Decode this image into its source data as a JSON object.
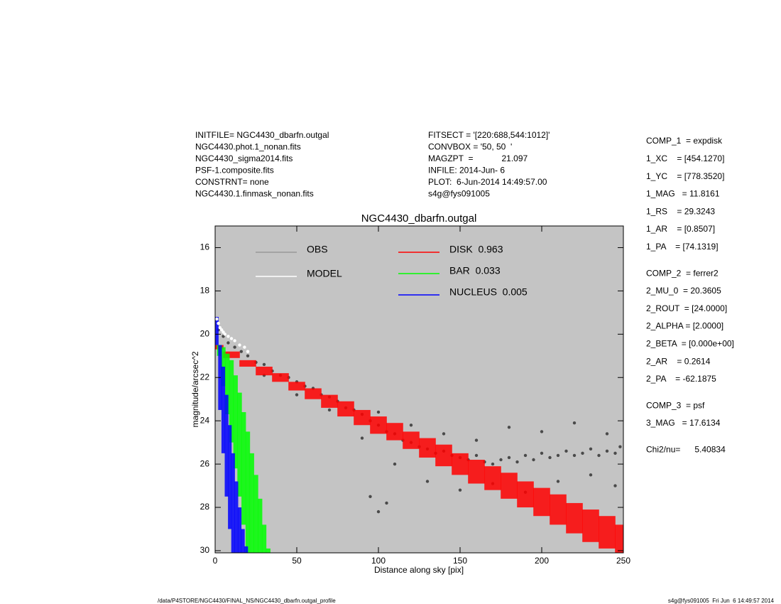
{
  "header": {
    "left": [
      "INITFILE= NGC4430_dbarfn.outgal",
      "NGC4430.phot.1_nonan.fits",
      "NGC4430_sigma2014.fits",
      "PSF-1.composite.fits",
      "CONSTRNT= none",
      "NGC4430.1.finmask_nonan.fits"
    ],
    "middle": [
      "FITSECT = '[220:688,544:1012]'",
      "CONVBOX = '50, 50  '",
      "MAGZPT  =            21.097",
      "INFILE: 2014-Jun- 6",
      "PLOT:  6-Jun-2014 14:49:57.00",
      "s4g@fys091005"
    ]
  },
  "parameters": [
    [
      "COMP_1  = expdisk",
      "1_XC    = [454.1270]",
      "1_YC    = [778.3520]",
      "1_MAG   = 11.8161",
      "1_RS    = 29.3243",
      "1_AR    = [0.8507]",
      "1_PA    = [74.1319]"
    ],
    [
      "COMP_2  = ferrer2",
      "2_MU_0  = 20.3605",
      "2_ROUT  = [24.0000]",
      "2_ALPHA = [2.0000]",
      "2_BETA  = [0.000e+00]",
      "2_AR    = 0.2614",
      "2_PA    = -62.1875"
    ],
    [
      "COMP_3  = psf",
      "3_MAG   = 17.6134"
    ],
    [
      "Chi2/nu=      5.40834"
    ]
  ],
  "footer": {
    "left": "/data/P4STORE/NGC4430/FINAL_NS/NGC4430_dbarfn.outgal_profile",
    "right": "s4g@fys091005  Fri Jun  6 14:49:57 2014"
  },
  "chart_data": {
    "type": "scatter",
    "title": "NGC4430_dbarfn.outgal",
    "x_label": "Distance along sky [pix]",
    "y_label": "magnitude/arcsec^2",
    "xlim": [
      0,
      250
    ],
    "ylim": [
      30.1,
      15
    ],
    "xticks": [
      0,
      50,
      100,
      150,
      200,
      250
    ],
    "yticks": [
      16,
      18,
      20,
      22,
      24,
      26,
      28,
      30
    ],
    "background": "#c4c4c4",
    "series": [
      {
        "name": "OBS",
        "kind": "points",
        "color": "#4a4a4a",
        "legend_color": "#999999",
        "x": [
          2,
          5,
          8,
          12,
          16,
          20,
          25,
          30,
          35,
          40,
          45,
          50,
          55,
          60,
          65,
          70,
          75,
          80,
          85,
          90,
          95,
          100,
          105,
          110,
          115,
          120,
          125,
          130,
          135,
          140,
          145,
          150,
          155,
          160,
          165,
          170,
          175,
          180,
          185,
          190,
          195,
          200,
          205,
          210,
          215,
          220,
          225,
          230,
          235,
          240,
          245,
          248,
          30,
          50,
          70,
          90,
          110,
          130,
          150,
          170,
          190,
          210,
          230,
          245,
          100,
          120,
          140,
          160,
          180,
          200,
          220,
          240,
          95,
          100,
          105
        ],
        "values": [
          19.8,
          20.1,
          20.4,
          20.6,
          20.8,
          21.0,
          21.3,
          21.4,
          21.7,
          21.9,
          22.0,
          22.2,
          22.4,
          22.5,
          22.8,
          22.9,
          23.1,
          23.4,
          23.5,
          23.7,
          24.0,
          24.2,
          24.5,
          24.6,
          24.9,
          25.0,
          25.2,
          25.3,
          25.5,
          25.4,
          25.6,
          25.7,
          25.8,
          25.6,
          25.9,
          26.0,
          25.8,
          25.7,
          25.9,
          25.6,
          25.8,
          25.5,
          25.7,
          25.6,
          25.4,
          25.6,
          25.5,
          25.3,
          25.6,
          25.4,
          25.5,
          25.2,
          21.9,
          22.8,
          23.5,
          24.8,
          26.0,
          26.8,
          27.2,
          26.9,
          27.3,
          26.8,
          26.5,
          27.0,
          23.6,
          24.2,
          24.6,
          24.9,
          24.3,
          24.5,
          24.1,
          24.6,
          27.5,
          28.2,
          27.8
        ]
      },
      {
        "name": "MODEL",
        "kind": "points",
        "color": "#ffffff",
        "x": [
          1,
          2,
          3,
          4,
          5,
          6,
          8,
          10,
          12,
          15,
          18,
          20
        ],
        "values": [
          19.3,
          19.5,
          19.7,
          19.8,
          19.9,
          20.0,
          20.1,
          20.2,
          20.3,
          20.5,
          20.6,
          20.8
        ]
      },
      {
        "name": "DISK  0.963",
        "kind": "band",
        "color": "#ff0000",
        "x": [
          0,
          10,
          20,
          30,
          40,
          50,
          60,
          70,
          80,
          90,
          100,
          110,
          120,
          130,
          140,
          150,
          160,
          170,
          180,
          190,
          200,
          210,
          220,
          230,
          240,
          250
        ],
        "lower": [
          20.5,
          20.8,
          21.2,
          21.5,
          21.8,
          22.2,
          22.5,
          22.8,
          23.1,
          23.5,
          23.8,
          24.1,
          24.5,
          24.8,
          25.1,
          25.5,
          25.8,
          26.1,
          26.4,
          26.8,
          27.1,
          27.4,
          27.8,
          28.1,
          28.4,
          28.8
        ],
        "upper": [
          20.7,
          21.1,
          21.5,
          21.9,
          22.2,
          22.6,
          23.0,
          23.4,
          23.8,
          24.2,
          24.6,
          24.9,
          25.3,
          25.7,
          26.1,
          26.5,
          26.9,
          27.2,
          27.6,
          28.0,
          28.4,
          28.8,
          29.2,
          29.6,
          29.9,
          30.1
        ]
      },
      {
        "name": "BAR  0.033",
        "kind": "band",
        "color": "#00ff00",
        "x": [
          2.5,
          5,
          7.5,
          10,
          12.5,
          15,
          17.5,
          20,
          22.5,
          25,
          27.5,
          30,
          32.5
        ],
        "lower": [
          20.5,
          20.6,
          20.9,
          21.2,
          21.9,
          22.7,
          23.6,
          24.5,
          25.5,
          26.5,
          27.6,
          28.8,
          29.9
        ],
        "upper": [
          21.0,
          22.4,
          23.7,
          25.0,
          26.2,
          27.5,
          28.8,
          30.1,
          30.1,
          30.1,
          30.1,
          30.1,
          30.1
        ]
      },
      {
        "name": "NUCLEUS  0.005",
        "kind": "band",
        "color": "#0000ff",
        "x": [
          1,
          3,
          5,
          7,
          9,
          11,
          13,
          15,
          17,
          19
        ],
        "lower": [
          19.2,
          20.5,
          21.5,
          22.8,
          24.2,
          25.5,
          26.8,
          28.0,
          29.0,
          29.8
        ],
        "upper": [
          20.5,
          23.5,
          25.5,
          27.5,
          29.0,
          30.1,
          30.1,
          30.1,
          30.1,
          30.1
        ]
      }
    ]
  }
}
